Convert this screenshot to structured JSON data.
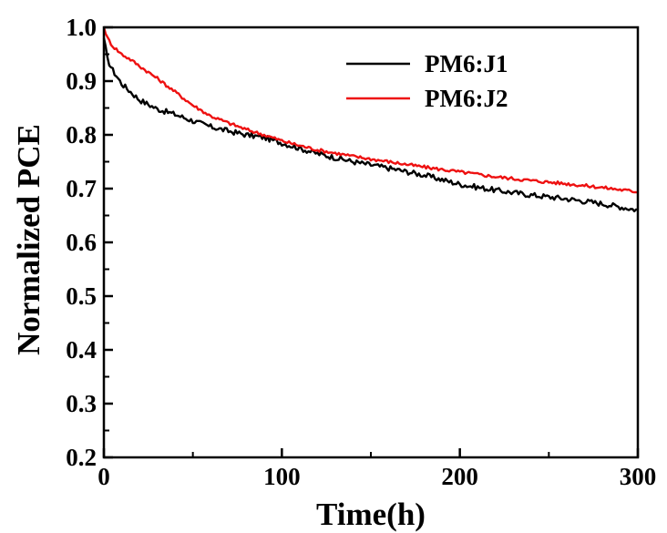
{
  "chart_data": {
    "type": "line",
    "title": "",
    "xlabel": "Time(h)",
    "ylabel": "Normalized PCE",
    "xlim": [
      0,
      300
    ],
    "ylim": [
      0.2,
      1.0
    ],
    "xticks": [
      0,
      100,
      200,
      300
    ],
    "xtick_labels": [
      "0",
      "100",
      "200",
      "300"
    ],
    "yticks": [
      0.2,
      0.3,
      0.4,
      0.5,
      0.6,
      0.7,
      0.8,
      0.9,
      1.0
    ],
    "ytick_labels": [
      "0.2",
      "0.3",
      "0.4",
      "0.5",
      "0.6",
      "0.7",
      "0.8",
      "0.9",
      "1.0"
    ],
    "grid": false,
    "legend_position": "top-right",
    "series": [
      {
        "name": "PM6:J1",
        "color": "#000000",
        "x": [
          0,
          2,
          5,
          10,
          15,
          20,
          30,
          40,
          50,
          60,
          70,
          80,
          90,
          100,
          110,
          120,
          140,
          160,
          180,
          200,
          220,
          240,
          260,
          280,
          300
        ],
        "y": [
          0.98,
          0.94,
          0.92,
          0.895,
          0.88,
          0.865,
          0.848,
          0.838,
          0.826,
          0.815,
          0.807,
          0.8,
          0.795,
          0.785,
          0.775,
          0.765,
          0.75,
          0.738,
          0.725,
          0.708,
          0.697,
          0.688,
          0.681,
          0.672,
          0.66
        ]
      },
      {
        "name": "PM6:J2",
        "color": "#ee1111",
        "x": [
          0,
          2,
          5,
          10,
          15,
          20,
          30,
          40,
          50,
          60,
          70,
          80,
          90,
          100,
          110,
          120,
          140,
          160,
          180,
          200,
          220,
          240,
          260,
          280,
          300
        ],
        "y": [
          1.0,
          0.98,
          0.965,
          0.95,
          0.94,
          0.928,
          0.905,
          0.88,
          0.855,
          0.835,
          0.822,
          0.81,
          0.8,
          0.789,
          0.78,
          0.772,
          0.76,
          0.75,
          0.74,
          0.731,
          0.722,
          0.715,
          0.709,
          0.702,
          0.694
        ]
      }
    ]
  }
}
